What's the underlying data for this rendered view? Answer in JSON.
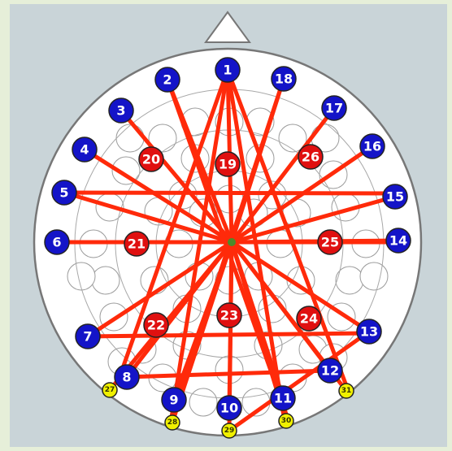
{
  "colors": {
    "frame_bg": "#e6efd9",
    "panel_bg": "#c9d4d8",
    "head_fill": "#ffffff",
    "outline": "#777777",
    "blue_electrode": "#1414c8",
    "red_electrode": "#e01010",
    "yellow_electrode": "#f0f000",
    "connection": "#ff2a0a",
    "hub": "#4d8a2a"
  },
  "electrodes": {
    "blue": [
      "1",
      "2",
      "3",
      "4",
      "5",
      "6",
      "7",
      "8",
      "9",
      "10",
      "11",
      "12",
      "13",
      "14",
      "15",
      "16",
      "17",
      "18"
    ],
    "red": [
      "19",
      "20",
      "21",
      "22",
      "23",
      "24",
      "25",
      "26"
    ],
    "yellow": [
      "27",
      "28",
      "29",
      "30",
      "31"
    ]
  },
  "connections": [
    "1",
    "2",
    "3",
    "4",
    "5",
    "6",
    "7",
    "8",
    "9",
    "10",
    "11",
    "12",
    "13",
    "14",
    "15",
    "16",
    "17",
    "18",
    "27",
    "28",
    "29",
    "30",
    "31"
  ]
}
